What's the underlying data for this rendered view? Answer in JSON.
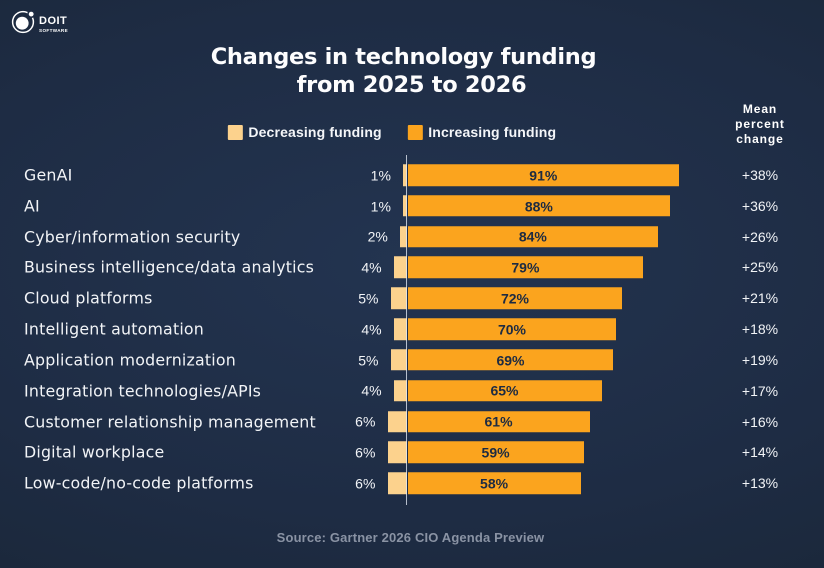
{
  "logo": {
    "name": "DOIT",
    "subname": "SOFTWARE"
  },
  "title": {
    "line1": "Changes in technology funding",
    "line2": "from 2025 to 2026"
  },
  "legend": {
    "decreasing_label": "Decreasing funding",
    "increasing_label": "Increasing funding"
  },
  "mean_header": {
    "line1": "Mean",
    "line2": "percent",
    "line3": "change"
  },
  "source": "Source: Gartner 2026 CIO Agenda Preview",
  "colors": {
    "background": "#1e2c44",
    "decreasing": "#fcd28d",
    "increasing": "#fba41e",
    "bar_label": "#1d2b42",
    "text": "#f2f4f7",
    "source_text": "#8a93a4"
  },
  "chart_data": {
    "type": "bar",
    "variant": "diverging-horizontal",
    "title": "Changes in technology funding from 2025 to 2026",
    "categories": [
      "GenAI",
      "AI",
      "Cyber/information security",
      "Business intelligence/data analytics",
      "Cloud platforms",
      "Intelligent automation",
      "Application modernization",
      "Integration technologies/APIs",
      "Customer relationship management",
      "Digital workplace",
      "Low-code/no-code platforms"
    ],
    "series": [
      {
        "name": "Decreasing funding",
        "color": "#fcd28d",
        "values": [
          1,
          1,
          2,
          4,
          5,
          4,
          5,
          4,
          6,
          6,
          6
        ]
      },
      {
        "name": "Increasing funding",
        "color": "#fba41e",
        "values": [
          91,
          88,
          84,
          79,
          72,
          70,
          69,
          65,
          61,
          59,
          58
        ]
      }
    ],
    "mean_percent_change": [
      "+38%",
      "+36%",
      "+26%",
      "+25%",
      "+21%",
      "+18%",
      "+19%",
      "+17%",
      "+16%",
      "+14%",
      "+13%"
    ],
    "value_unit": "%",
    "xlim": [
      -6,
      91
    ],
    "legend_position": "top",
    "zero_line": true,
    "grid": false
  }
}
